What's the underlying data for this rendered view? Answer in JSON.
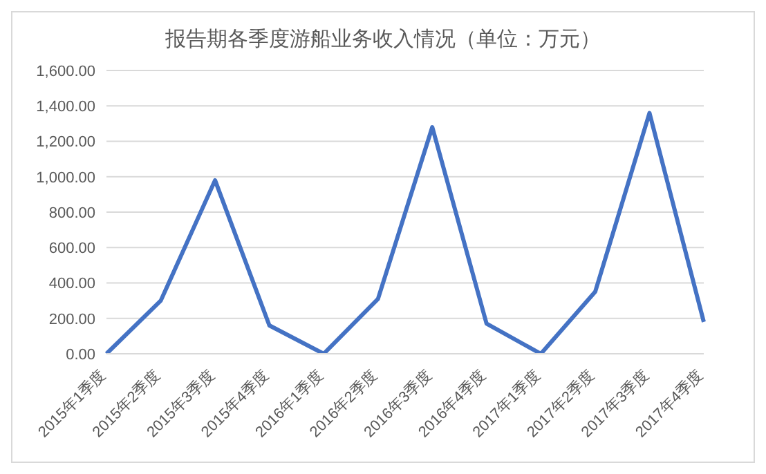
{
  "chart_data": {
    "type": "line",
    "title": "报告期各季度游船业务收入情况（单位：万元）",
    "categories": [
      "2015年1季度",
      "2015年2季度",
      "2015年3季度",
      "2015年4季度",
      "2016年1季度",
      "2016年2季度",
      "2016年3季度",
      "2016年4季度",
      "2017年1季度",
      "2017年2季度",
      "2017年3季度",
      "2017年4季度"
    ],
    "series": [
      {
        "color": "#4472c4",
        "values": [
          0,
          300,
          980,
          160,
          0,
          310,
          1280,
          170,
          0,
          350,
          1360,
          180
        ]
      }
    ],
    "ylim": [
      0,
      1600
    ],
    "yticks": [
      {
        "value": 0,
        "label": "0.00"
      },
      {
        "value": 200,
        "label": "200.00"
      },
      {
        "value": 400,
        "label": "400.00"
      },
      {
        "value": 600,
        "label": "600.00"
      },
      {
        "value": 800,
        "label": "800.00"
      },
      {
        "value": 1000,
        "label": "1,000.00"
      },
      {
        "value": 1200,
        "label": "1,200.00"
      },
      {
        "value": 1400,
        "label": "1,400.00"
      },
      {
        "value": 1600,
        "label": "1,600.00"
      }
    ],
    "grid": "y",
    "marker": "none",
    "line_style": "solid",
    "legend": false
  }
}
